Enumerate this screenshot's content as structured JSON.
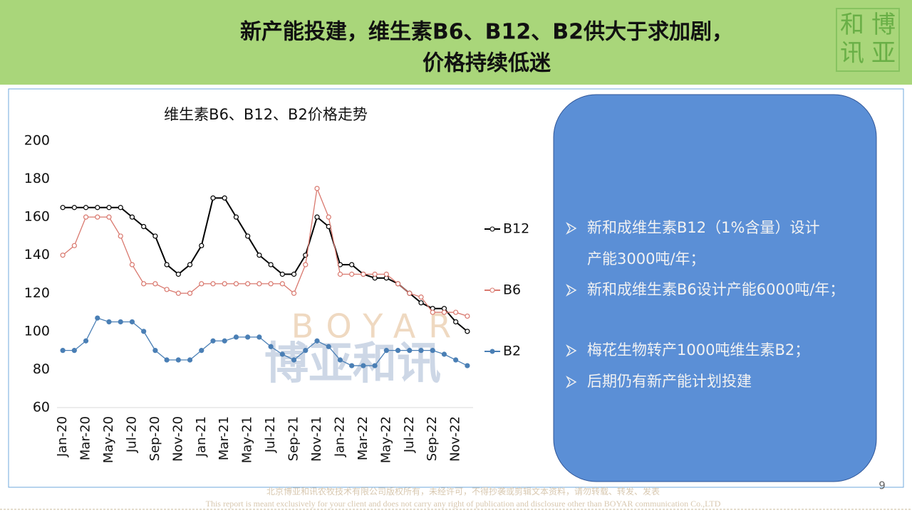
{
  "header": {
    "title_lines": [
      "新产能投建，维生素B6、B12、B2供大于求加剧，",
      "价格持续低迷"
    ],
    "logo": [
      "和",
      "博",
      "讯",
      "亚"
    ]
  },
  "chart_data": {
    "type": "line",
    "title": "维生素B6、B12、B2价格走势",
    "categories": [
      "Jan-20",
      null,
      "Mar-20",
      null,
      "May-20",
      null,
      "Jul-20",
      null,
      "Sep-20",
      null,
      "Nov-20",
      null,
      "Jan-21",
      null,
      "Mar-21",
      null,
      "May-21",
      null,
      "Jul-21",
      null,
      "Sep-21",
      null,
      "Nov-21",
      null,
      "Jan-22",
      null,
      "Mar-22",
      null,
      "May-22",
      null,
      "Jul-22",
      null,
      "Sep-22",
      null,
      "Nov-22",
      null
    ],
    "series": [
      {
        "name": "B12",
        "color": "#000000",
        "values": [
          165,
          165,
          165,
          165,
          165,
          165,
          160,
          155,
          150,
          135,
          130,
          135,
          145,
          170,
          170,
          160,
          150,
          140,
          135,
          130,
          130,
          140,
          160,
          155,
          135,
          135,
          130,
          128,
          128,
          125,
          120,
          115,
          112,
          112,
          105,
          100
        ]
      },
      {
        "name": "B6",
        "color": "#d9786e",
        "values": [
          140,
          145,
          160,
          160,
          160,
          150,
          135,
          125,
          125,
          122,
          120,
          120,
          125,
          125,
          125,
          125,
          125,
          125,
          125,
          125,
          120,
          135,
          175,
          160,
          130,
          130,
          130,
          130,
          130,
          125,
          120,
          118,
          110,
          110,
          110,
          108
        ]
      },
      {
        "name": "B2",
        "color": "#4a7fb5",
        "values": [
          90,
          90,
          95,
          107,
          105,
          105,
          105,
          100,
          90,
          85,
          85,
          85,
          90,
          95,
          95,
          97,
          97,
          97,
          92,
          88,
          85,
          90,
          95,
          92,
          85,
          82,
          82,
          82,
          90,
          90,
          90,
          90,
          90,
          88,
          85,
          82
        ]
      }
    ],
    "ylim": [
      60,
      200
    ],
    "yticks": [
      60,
      80,
      100,
      120,
      140,
      160,
      180,
      200
    ],
    "grid": false,
    "legend": "right",
    "watermark": [
      "BOYAR",
      "博亚和讯"
    ]
  },
  "panel": {
    "bullets": [
      [
        "新和成维生素B12（1%含量）设计",
        "产能3000吨/年；"
      ],
      [
        "新和成维生素B6设计产能6000吨/年；"
      ],
      [
        "梅花生物转产1000吨维生素B2；"
      ],
      [
        "后期仍有新产能计划投建"
      ]
    ]
  },
  "footer": {
    "lines": [
      "北京博亚和讯农牧技术有限公司版权所有，未经许可，不得抄袭或剪辑文本资料，请勿转载、转发、发表",
      "This report is meant exclusively for your client and does not carry any right of publication and disclosure other than BOYAR communication Co.,LTD"
    ],
    "page": "9"
  }
}
